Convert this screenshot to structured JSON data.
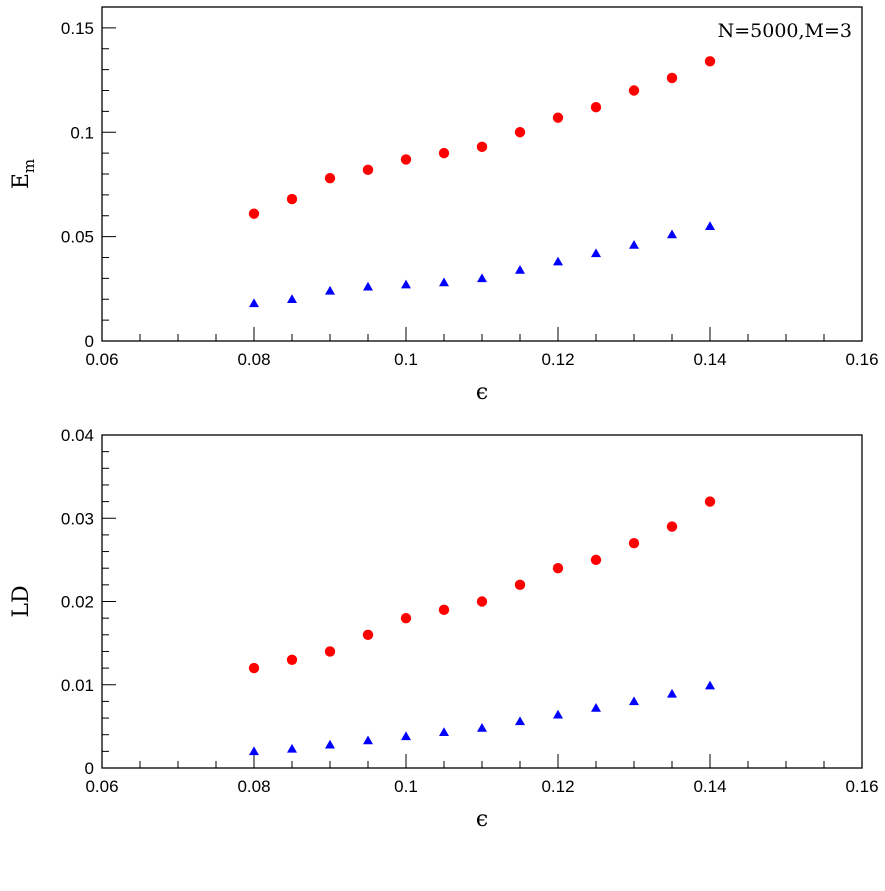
{
  "chart_data": [
    {
      "type": "scatter",
      "annotation": "N=5000,M=3",
      "xlabel": "ϵ",
      "ylabel_main": "E",
      "ylabel_sub": "m",
      "xlim": [
        0.06,
        0.16
      ],
      "ylim": [
        0,
        0.16
      ],
      "x_ticks": [
        0.06,
        0.08,
        0.1,
        0.12,
        0.14,
        0.16
      ],
      "x_tick_labels": [
        "0.06",
        "0.08",
        "0.1",
        "0.12",
        "0.14",
        "0.16"
      ],
      "y_ticks": [
        0,
        0.05,
        0.1,
        0.15
      ],
      "y_tick_labels": [
        "0",
        "0.05",
        "0.1",
        "0.15"
      ],
      "grid": false,
      "x": [
        0.08,
        0.085,
        0.09,
        0.095,
        0.1,
        0.105,
        0.11,
        0.115,
        0.12,
        0.125,
        0.13,
        0.135,
        0.14
      ],
      "series": [
        {
          "marker": "circle",
          "color": "#ff0000",
          "values": [
            0.061,
            0.068,
            0.078,
            0.082,
            0.087,
            0.09,
            0.093,
            0.1,
            0.107,
            0.112,
            0.12,
            0.126,
            0.134
          ]
        },
        {
          "marker": "triangle",
          "color": "#0000ff",
          "values": [
            0.018,
            0.02,
            0.024,
            0.026,
            0.027,
            0.028,
            0.03,
            0.034,
            0.038,
            0.042,
            0.046,
            0.051,
            0.055
          ]
        }
      ]
    },
    {
      "type": "scatter",
      "xlabel": "ϵ",
      "ylabel_main": "LD",
      "ylabel_sub": "",
      "xlim": [
        0.06,
        0.16
      ],
      "ylim": [
        0,
        0.04
      ],
      "x_ticks": [
        0.06,
        0.08,
        0.1,
        0.12,
        0.14,
        0.16
      ],
      "x_tick_labels": [
        "0.06",
        "0.08",
        "0.1",
        "0.12",
        "0.14",
        "0.16"
      ],
      "y_ticks": [
        0,
        0.01,
        0.02,
        0.03,
        0.04
      ],
      "y_tick_labels": [
        "0",
        "0.01",
        "0.02",
        "0.03",
        "0.04"
      ],
      "grid": false,
      "x": [
        0.08,
        0.085,
        0.09,
        0.095,
        0.1,
        0.105,
        0.11,
        0.115,
        0.12,
        0.125,
        0.13,
        0.135,
        0.14
      ],
      "series": [
        {
          "marker": "circle",
          "color": "#ff0000",
          "values": [
            0.012,
            0.013,
            0.014,
            0.016,
            0.018,
            0.019,
            0.02,
            0.022,
            0.024,
            0.025,
            0.027,
            0.029,
            0.032
          ]
        },
        {
          "marker": "triangle",
          "color": "#0000ff",
          "values": [
            0.002,
            0.0023,
            0.0028,
            0.0033,
            0.0038,
            0.0043,
            0.0048,
            0.0056,
            0.0064,
            0.0072,
            0.008,
            0.0089,
            0.0099
          ]
        }
      ]
    }
  ]
}
